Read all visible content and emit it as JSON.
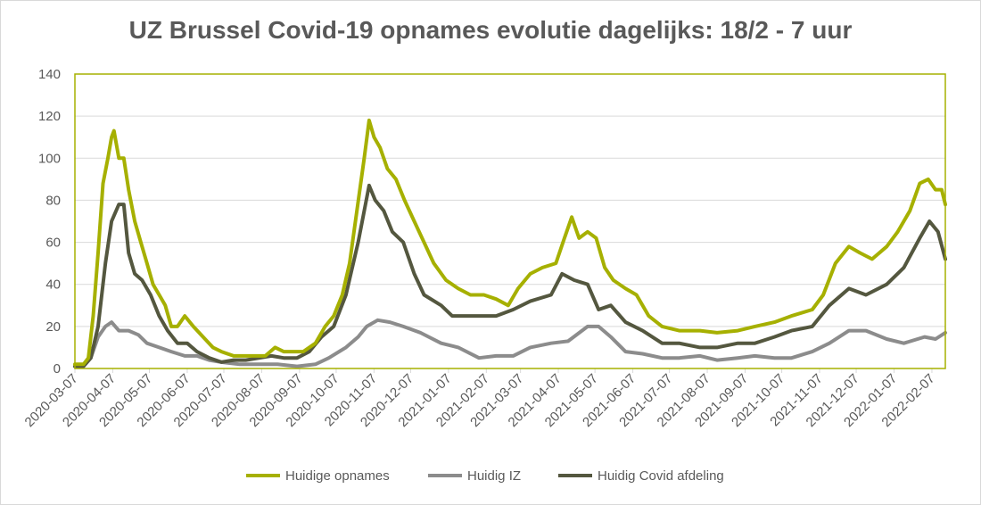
{
  "chart_data": {
    "type": "line",
    "title": "UZ Brussel Covid-19 opnames evolutie dagelijks: 18/2 - 7 uur",
    "xlabel": "",
    "ylabel": "",
    "ylim": [
      0,
      140
    ],
    "yticks": [
      0,
      20,
      40,
      60,
      80,
      100,
      120,
      140
    ],
    "x_range": [
      "2020-03-07",
      "2022-02-18"
    ],
    "x_tick_labels": [
      "2020-03-07",
      "2020-04-07",
      "2020-05-07",
      "2020-06-07",
      "2020-07-07",
      "2020-08-07",
      "2020-09-07",
      "2020-10-07",
      "2020-11-07",
      "2020-12-07",
      "2021-01-07",
      "2021-02-07",
      "2021-03-07",
      "2021-04-07",
      "2021-05-07",
      "2021-06-07",
      "2021-07-07",
      "2021-08-07",
      "2021-09-07",
      "2021-10-07",
      "2021-11-07",
      "2021-12-07",
      "2022-01-07",
      "2022-02-07"
    ],
    "grid": "horizontal",
    "legend": "bottom",
    "series": [
      {
        "name": "Huidige opnames",
        "color": "#a6b000",
        "points": [
          [
            "2020-03-07",
            2
          ],
          [
            "2020-03-14",
            2
          ],
          [
            "2020-03-18",
            5
          ],
          [
            "2020-03-22",
            25
          ],
          [
            "2020-03-26",
            55
          ],
          [
            "2020-03-30",
            88
          ],
          [
            "2020-04-03",
            100
          ],
          [
            "2020-04-06",
            110
          ],
          [
            "2020-04-08",
            113
          ],
          [
            "2020-04-12",
            100
          ],
          [
            "2020-04-16",
            100
          ],
          [
            "2020-04-20",
            85
          ],
          [
            "2020-04-25",
            70
          ],
          [
            "2020-04-30",
            60
          ],
          [
            "2020-05-05",
            50
          ],
          [
            "2020-05-10",
            40
          ],
          [
            "2020-05-15",
            35
          ],
          [
            "2020-05-20",
            30
          ],
          [
            "2020-05-25",
            20
          ],
          [
            "2020-05-30",
            20
          ],
          [
            "2020-06-05",
            25
          ],
          [
            "2020-06-12",
            20
          ],
          [
            "2020-06-20",
            15
          ],
          [
            "2020-06-28",
            10
          ],
          [
            "2020-07-05",
            8
          ],
          [
            "2020-07-15",
            6
          ],
          [
            "2020-07-25",
            6
          ],
          [
            "2020-08-02",
            6
          ],
          [
            "2020-08-10",
            6
          ],
          [
            "2020-08-18",
            10
          ],
          [
            "2020-08-25",
            8
          ],
          [
            "2020-09-01",
            8
          ],
          [
            "2020-09-10",
            8
          ],
          [
            "2020-09-20",
            12
          ],
          [
            "2020-09-28",
            20
          ],
          [
            "2020-10-05",
            25
          ],
          [
            "2020-10-12",
            35
          ],
          [
            "2020-10-18",
            50
          ],
          [
            "2020-10-24",
            75
          ],
          [
            "2020-10-30",
            100
          ],
          [
            "2020-11-03",
            118
          ],
          [
            "2020-11-07",
            110
          ],
          [
            "2020-11-12",
            105
          ],
          [
            "2020-11-18",
            95
          ],
          [
            "2020-11-25",
            90
          ],
          [
            "2020-12-02",
            80
          ],
          [
            "2020-12-10",
            70
          ],
          [
            "2020-12-18",
            60
          ],
          [
            "2020-12-26",
            50
          ],
          [
            "2021-01-05",
            42
          ],
          [
            "2021-01-15",
            38
          ],
          [
            "2021-01-25",
            35
          ],
          [
            "2021-02-05",
            35
          ],
          [
            "2021-02-15",
            33
          ],
          [
            "2021-02-25",
            30
          ],
          [
            "2021-03-05",
            38
          ],
          [
            "2021-03-15",
            45
          ],
          [
            "2021-03-25",
            48
          ],
          [
            "2021-04-05",
            50
          ],
          [
            "2021-04-12",
            62
          ],
          [
            "2021-04-18",
            72
          ],
          [
            "2021-04-24",
            62
          ],
          [
            "2021-05-01",
            65
          ],
          [
            "2021-05-08",
            62
          ],
          [
            "2021-05-15",
            48
          ],
          [
            "2021-05-22",
            42
          ],
          [
            "2021-06-01",
            38
          ],
          [
            "2021-06-10",
            35
          ],
          [
            "2021-06-20",
            25
          ],
          [
            "2021-07-01",
            20
          ],
          [
            "2021-07-15",
            18
          ],
          [
            "2021-08-01",
            18
          ],
          [
            "2021-08-15",
            17
          ],
          [
            "2021-09-01",
            18
          ],
          [
            "2021-09-15",
            20
          ],
          [
            "2021-10-01",
            22
          ],
          [
            "2021-10-15",
            25
          ],
          [
            "2021-11-01",
            28
          ],
          [
            "2021-11-10",
            35
          ],
          [
            "2021-11-20",
            50
          ],
          [
            "2021-12-01",
            58
          ],
          [
            "2021-12-10",
            55
          ],
          [
            "2021-12-20",
            52
          ],
          [
            "2022-01-01",
            58
          ],
          [
            "2022-01-10",
            65
          ],
          [
            "2022-01-20",
            75
          ],
          [
            "2022-01-28",
            88
          ],
          [
            "2022-02-04",
            90
          ],
          [
            "2022-02-10",
            85
          ],
          [
            "2022-02-15",
            85
          ],
          [
            "2022-02-18",
            78
          ]
        ]
      },
      {
        "name": "Huidig IZ",
        "color": "#8c8c8c",
        "points": [
          [
            "2020-03-07",
            1
          ],
          [
            "2020-03-14",
            1
          ],
          [
            "2020-03-20",
            5
          ],
          [
            "2020-03-26",
            15
          ],
          [
            "2020-04-01",
            20
          ],
          [
            "2020-04-06",
            22
          ],
          [
            "2020-04-12",
            18
          ],
          [
            "2020-04-20",
            18
          ],
          [
            "2020-04-28",
            16
          ],
          [
            "2020-05-05",
            12
          ],
          [
            "2020-05-15",
            10
          ],
          [
            "2020-05-25",
            8
          ],
          [
            "2020-06-05",
            6
          ],
          [
            "2020-06-15",
            6
          ],
          [
            "2020-06-25",
            4
          ],
          [
            "2020-07-05",
            3
          ],
          [
            "2020-07-20",
            2
          ],
          [
            "2020-08-05",
            2
          ],
          [
            "2020-08-20",
            2
          ],
          [
            "2020-09-05",
            1
          ],
          [
            "2020-09-20",
            2
          ],
          [
            "2020-10-01",
            5
          ],
          [
            "2020-10-15",
            10
          ],
          [
            "2020-10-25",
            15
          ],
          [
            "2020-11-01",
            20
          ],
          [
            "2020-11-10",
            23
          ],
          [
            "2020-11-20",
            22
          ],
          [
            "2020-12-01",
            20
          ],
          [
            "2020-12-15",
            17
          ],
          [
            "2021-01-01",
            12
          ],
          [
            "2021-01-15",
            10
          ],
          [
            "2021-02-01",
            5
          ],
          [
            "2021-02-15",
            6
          ],
          [
            "2021-03-01",
            6
          ],
          [
            "2021-03-15",
            10
          ],
          [
            "2021-04-01",
            12
          ],
          [
            "2021-04-15",
            13
          ],
          [
            "2021-05-01",
            20
          ],
          [
            "2021-05-10",
            20
          ],
          [
            "2021-05-20",
            15
          ],
          [
            "2021-06-01",
            8
          ],
          [
            "2021-06-15",
            7
          ],
          [
            "2021-07-01",
            5
          ],
          [
            "2021-07-15",
            5
          ],
          [
            "2021-08-01",
            6
          ],
          [
            "2021-08-15",
            4
          ],
          [
            "2021-09-01",
            5
          ],
          [
            "2021-09-15",
            6
          ],
          [
            "2021-10-01",
            5
          ],
          [
            "2021-10-15",
            5
          ],
          [
            "2021-11-01",
            8
          ],
          [
            "2021-11-15",
            12
          ],
          [
            "2021-12-01",
            18
          ],
          [
            "2021-12-15",
            18
          ],
          [
            "2022-01-01",
            14
          ],
          [
            "2022-01-15",
            12
          ],
          [
            "2022-02-01",
            15
          ],
          [
            "2022-02-10",
            14
          ],
          [
            "2022-02-18",
            17
          ]
        ]
      },
      {
        "name": "Huidig Covid afdeling",
        "color": "#54573f",
        "points": [
          [
            "2020-03-07",
            1
          ],
          [
            "2020-03-14",
            1
          ],
          [
            "2020-03-20",
            5
          ],
          [
            "2020-03-26",
            20
          ],
          [
            "2020-04-01",
            50
          ],
          [
            "2020-04-06",
            70
          ],
          [
            "2020-04-12",
            78
          ],
          [
            "2020-04-16",
            78
          ],
          [
            "2020-04-20",
            55
          ],
          [
            "2020-04-25",
            45
          ],
          [
            "2020-05-01",
            42
          ],
          [
            "2020-05-08",
            35
          ],
          [
            "2020-05-15",
            25
          ],
          [
            "2020-05-22",
            18
          ],
          [
            "2020-05-30",
            12
          ],
          [
            "2020-06-07",
            12
          ],
          [
            "2020-06-15",
            8
          ],
          [
            "2020-06-25",
            5
          ],
          [
            "2020-07-05",
            3
          ],
          [
            "2020-07-15",
            4
          ],
          [
            "2020-07-25",
            4
          ],
          [
            "2020-08-05",
            5
          ],
          [
            "2020-08-15",
            6
          ],
          [
            "2020-08-25",
            5
          ],
          [
            "2020-09-05",
            5
          ],
          [
            "2020-09-15",
            8
          ],
          [
            "2020-09-25",
            15
          ],
          [
            "2020-10-05",
            20
          ],
          [
            "2020-10-15",
            35
          ],
          [
            "2020-10-25",
            60
          ],
          [
            "2020-11-03",
            87
          ],
          [
            "2020-11-08",
            80
          ],
          [
            "2020-11-15",
            75
          ],
          [
            "2020-11-22",
            65
          ],
          [
            "2020-12-01",
            60
          ],
          [
            "2020-12-10",
            45
          ],
          [
            "2020-12-18",
            35
          ],
          [
            "2021-01-01",
            30
          ],
          [
            "2021-01-10",
            25
          ],
          [
            "2021-01-20",
            25
          ],
          [
            "2021-02-01",
            25
          ],
          [
            "2021-02-15",
            25
          ],
          [
            "2021-03-01",
            28
          ],
          [
            "2021-03-15",
            32
          ],
          [
            "2021-04-01",
            35
          ],
          [
            "2021-04-10",
            45
          ],
          [
            "2021-04-20",
            42
          ],
          [
            "2021-05-01",
            40
          ],
          [
            "2021-05-10",
            28
          ],
          [
            "2021-05-20",
            30
          ],
          [
            "2021-06-01",
            22
          ],
          [
            "2021-06-15",
            18
          ],
          [
            "2021-07-01",
            12
          ],
          [
            "2021-07-15",
            12
          ],
          [
            "2021-08-01",
            10
          ],
          [
            "2021-08-15",
            10
          ],
          [
            "2021-09-01",
            12
          ],
          [
            "2021-09-15",
            12
          ],
          [
            "2021-10-01",
            15
          ],
          [
            "2021-10-15",
            18
          ],
          [
            "2021-11-01",
            20
          ],
          [
            "2021-11-15",
            30
          ],
          [
            "2021-12-01",
            38
          ],
          [
            "2021-12-15",
            35
          ],
          [
            "2022-01-01",
            40
          ],
          [
            "2022-01-15",
            48
          ],
          [
            "2022-01-28",
            62
          ],
          [
            "2022-02-05",
            70
          ],
          [
            "2022-02-12",
            65
          ],
          [
            "2022-02-18",
            52
          ]
        ]
      }
    ]
  }
}
